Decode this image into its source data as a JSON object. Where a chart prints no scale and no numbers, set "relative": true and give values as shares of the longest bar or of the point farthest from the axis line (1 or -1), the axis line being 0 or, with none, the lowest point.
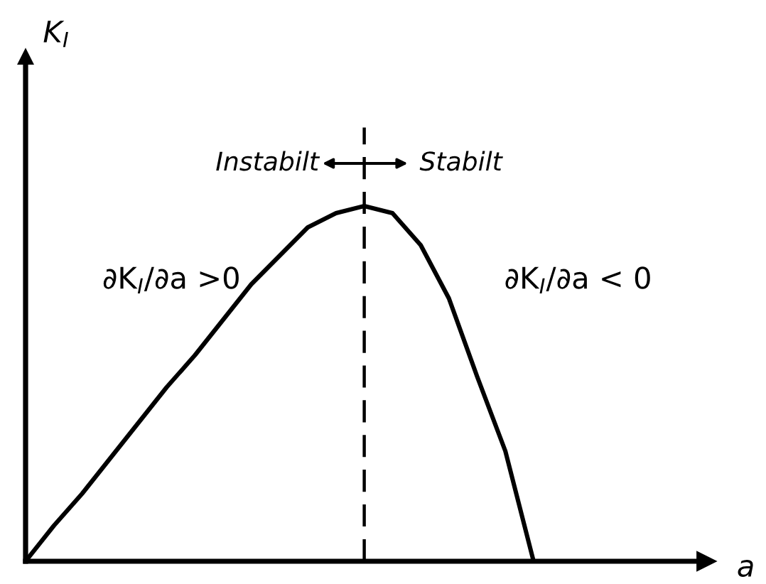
{
  "chart_data": {
    "type": "line",
    "relative": true,
    "categories": [
      null,
      null,
      null,
      null,
      null,
      null,
      null,
      null,
      null,
      null,
      null,
      null,
      null,
      null,
      null,
      null,
      null,
      null,
      null
    ],
    "series": [
      {
        "color": "#000000",
        "values": [
          0,
          0.1,
          0.19,
          0.29,
          0.39,
          0.49,
          0.58,
          0.68,
          0.78,
          0.86,
          0.94,
          0.98,
          1,
          0.98,
          0.89,
          0.74,
          0.52,
          0.31,
          0
        ]
      }
    ],
    "annotations": [
      "K$_{I}$",
      "Instabilt",
      "Stabilt",
      "∂K$_{I}$/∂a >0",
      "∂K$_{I}$/∂a < 0",
      "a"
    ]
  }
}
